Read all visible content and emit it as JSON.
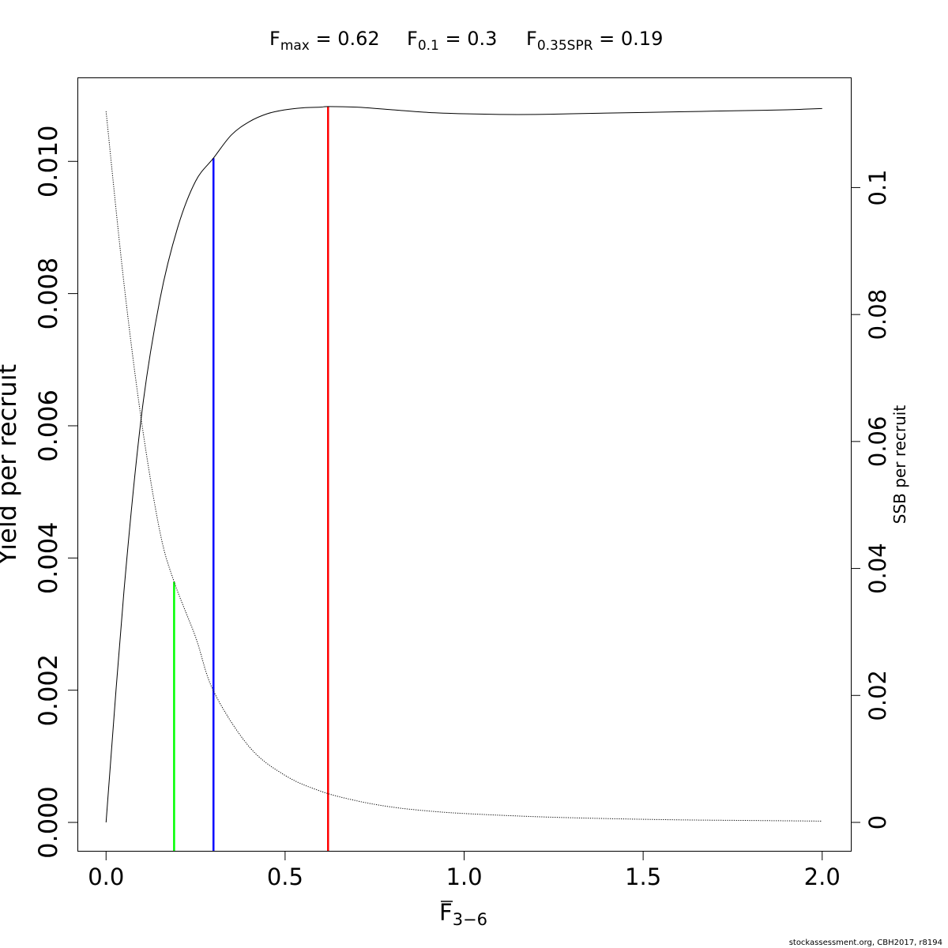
{
  "chart_data": {
    "type": "line",
    "title_parts": [
      {
        "main": "F",
        "sub": "max",
        "value": " = 0.62"
      },
      {
        "main": "F",
        "sub": "0.1",
        "value": " = 0.3"
      },
      {
        "main": "F",
        "sub": "0.35SPR",
        "value": " = 0.19"
      }
    ],
    "xlabel": {
      "main": "F",
      "sub": "3−6"
    },
    "ylabel_left": "Yield per recruit",
    "ylabel_right": "SSB per recruit",
    "xlim": [
      -0.08,
      2.08
    ],
    "ylim_left": [
      -0.00043,
      0.01127
    ],
    "ylim_right": [
      -0.00448,
      0.11735
    ],
    "x_ticks": [
      0.0,
      0.5,
      1.0,
      1.5,
      2.0
    ],
    "x_tick_labels": [
      "0.0",
      "0.5",
      "1.0",
      "1.5",
      "2.0"
    ],
    "y_left_ticks": [
      0.0,
      0.002,
      0.004,
      0.006,
      0.008,
      0.01
    ],
    "y_left_tick_labels": [
      "0.000",
      "0.002",
      "0.004",
      "0.006",
      "0.008",
      "0.010"
    ],
    "y_right_ticks": [
      0,
      0.02,
      0.04,
      0.06,
      0.08,
      0.1
    ],
    "y_right_tick_labels": [
      "0",
      "0.02",
      "0.04",
      "0.06",
      "0.08",
      "0.1"
    ],
    "series": [
      {
        "axis": "left",
        "style": "solid",
        "color": "#000000",
        "x": [
          0,
          0.05,
          0.1,
          0.15,
          0.2,
          0.25,
          0.3,
          0.35,
          0.4,
          0.45,
          0.5,
          0.55,
          0.6,
          0.62,
          0.7,
          0.8,
          0.9,
          1.0,
          1.1,
          1.2,
          1.3,
          1.4,
          1.5,
          1.6,
          1.7,
          1.8,
          1.9,
          2.0
        ],
        "y": [
          0.0,
          0.0035,
          0.0062,
          0.0079,
          0.009,
          0.0097,
          0.01005,
          0.0104,
          0.0106,
          0.01072,
          0.01078,
          0.01081,
          0.01082,
          0.01083,
          0.01082,
          0.01078,
          0.01074,
          0.01072,
          0.01071,
          0.01071,
          0.01072,
          0.01073,
          0.01074,
          0.01075,
          0.01076,
          0.01077,
          0.01078,
          0.0108
        ]
      },
      {
        "axis": "right",
        "style": "dotted",
        "color": "#000000",
        "x": [
          0,
          0.05,
          0.1,
          0.15,
          0.19,
          0.25,
          0.3,
          0.4,
          0.5,
          0.6,
          0.7,
          0.8,
          0.9,
          1.0,
          1.2,
          1.4,
          1.6,
          1.8,
          2.0
        ],
        "y": [
          0.112,
          0.0849,
          0.0628,
          0.0459,
          0.0379,
          0.0292,
          0.0207,
          0.0119,
          0.0074,
          0.0049,
          0.0034,
          0.0024,
          0.0018,
          0.0014,
          0.0009,
          0.0006,
          0.0004,
          0.0003,
          0.0002
        ]
      }
    ],
    "reference_lines": [
      {
        "x": 0.19,
        "y_right": 0.0379,
        "color": "#00ff00"
      },
      {
        "x": 0.3,
        "y_left": 0.01005,
        "color": "#0000ff"
      },
      {
        "x": 0.62,
        "y_left": 0.01083,
        "color": "#ff0000"
      }
    ],
    "grid": false,
    "legend": "none"
  },
  "footer": "stockassessment.org, CBH2017, r8194"
}
